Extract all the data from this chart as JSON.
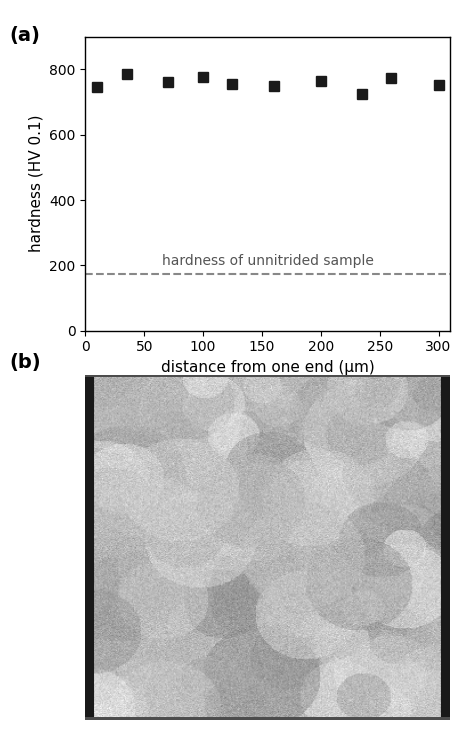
{
  "panel_a_label": "(a)",
  "panel_b_label": "(b)",
  "x_data": [
    10,
    35,
    70,
    100,
    125,
    160,
    200,
    235,
    260,
    300
  ],
  "y_data": [
    745,
    785,
    762,
    778,
    755,
    750,
    765,
    725,
    775,
    752
  ],
  "dashed_y": 175,
  "dashed_label": "hardness of unnitrided sample",
  "xlabel": "distance from one end (μm)",
  "ylabel": "hardness (HV 0.1)",
  "xlim": [
    0,
    310
  ],
  "ylim": [
    0,
    900
  ],
  "yticks": [
    0,
    200,
    400,
    600,
    800
  ],
  "xticks": [
    0,
    50,
    100,
    150,
    200,
    250,
    300
  ],
  "marker_color": "#1a1a1a",
  "dashed_color": "#888888",
  "background_color": "#ffffff",
  "figure_bg": "#ffffff",
  "arrow_color": "#000000",
  "label_fontsize": 11,
  "tick_fontsize": 10,
  "annotation_fontsize": 10,
  "panel_label_fontsize": 14
}
